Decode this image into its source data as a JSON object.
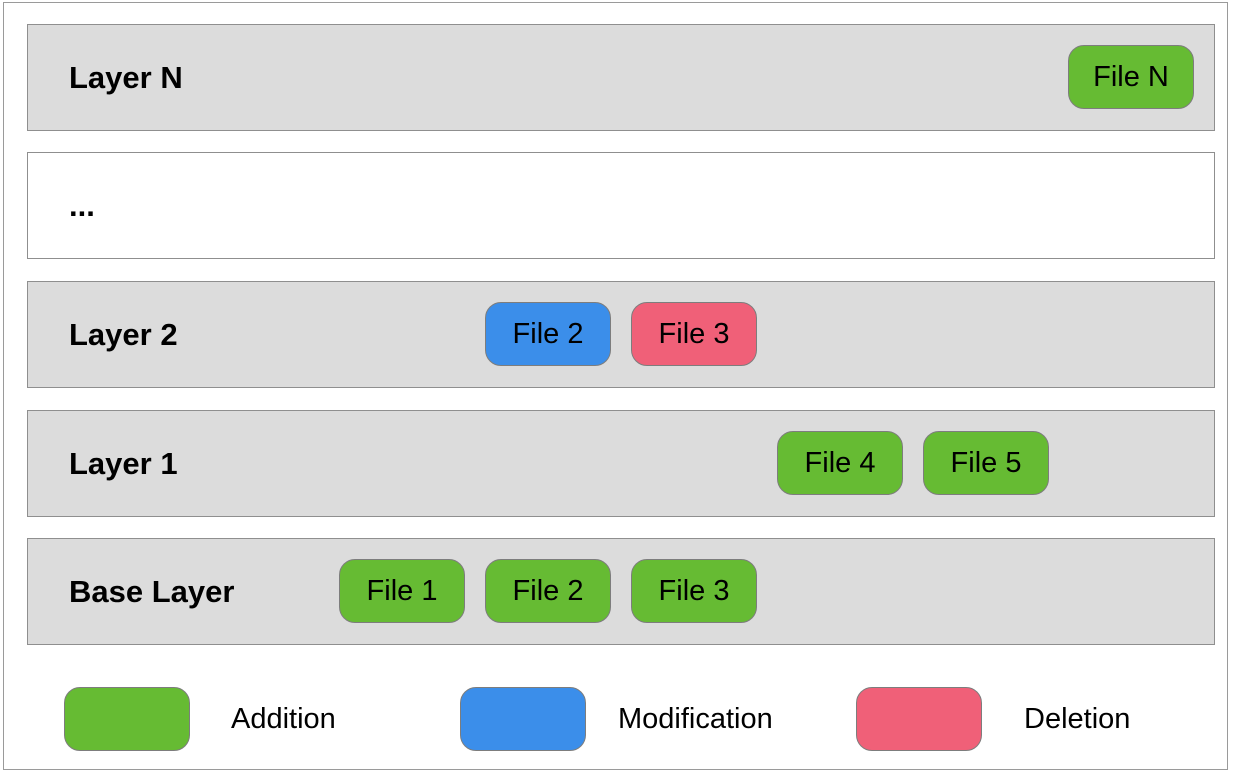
{
  "colors": {
    "addition": "#66bb33",
    "modification": "#3b8eea",
    "deletion": "#f06078",
    "layer_fill": "#dcdcdc"
  },
  "layers": [
    {
      "label": "Layer N",
      "files": [
        {
          "label": "File N",
          "change": "addition"
        }
      ]
    },
    {
      "label": "...",
      "files": []
    },
    {
      "label": "Layer 2",
      "files": [
        {
          "label": "File 2",
          "change": "modification"
        },
        {
          "label": "File 3",
          "change": "deletion"
        }
      ]
    },
    {
      "label": "Layer 1",
      "files": [
        {
          "label": "File 4",
          "change": "addition"
        },
        {
          "label": "File 5",
          "change": "addition"
        }
      ]
    },
    {
      "label": "Base Layer",
      "files": [
        {
          "label": "File 1",
          "change": "addition"
        },
        {
          "label": "File 2",
          "change": "addition"
        },
        {
          "label": "File 3",
          "change": "addition"
        }
      ]
    }
  ],
  "legend": [
    {
      "change": "addition",
      "label": "Addition"
    },
    {
      "change": "modification",
      "label": "Modification"
    },
    {
      "change": "deletion",
      "label": "Deletion"
    }
  ]
}
